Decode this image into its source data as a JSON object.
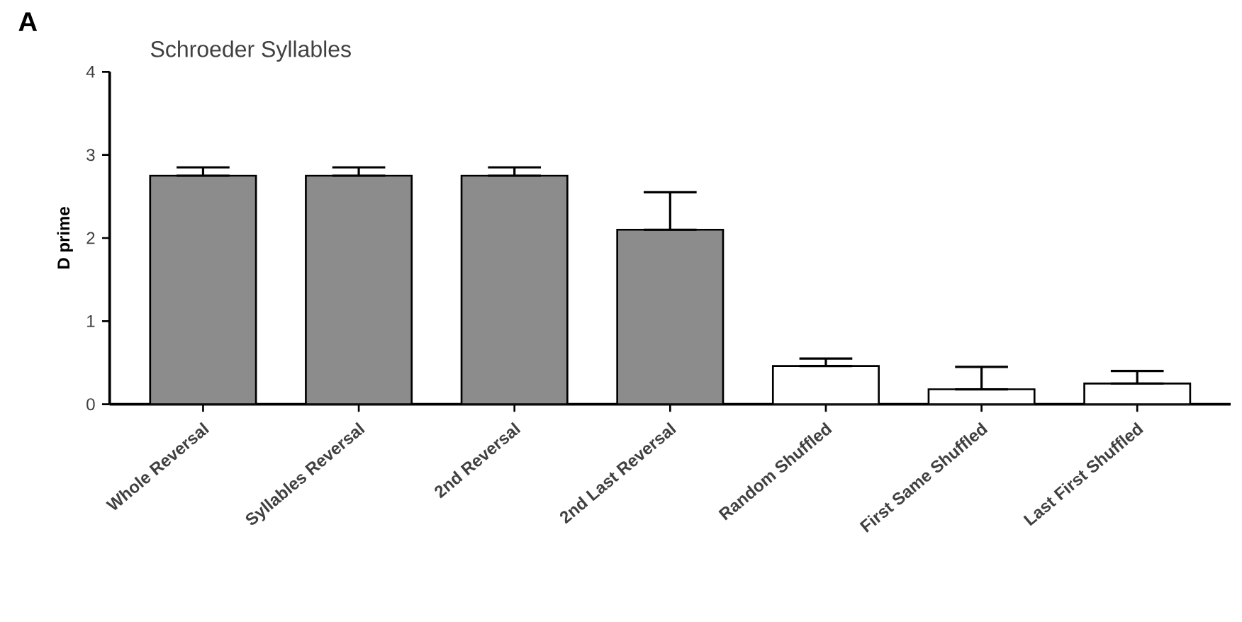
{
  "chart_data": {
    "type": "bar",
    "title": "Schroeder Syllables",
    "ylabel": "D prime",
    "annotations": [
      "A"
    ],
    "categories": [
      "Whole Reversal",
      "Syllables Reversal",
      "2nd Reversal",
      "2nd Last Reversal",
      "Random Shuffled",
      "First Same Shuffled",
      "Last First Shuffled"
    ],
    "values": [
      2.75,
      2.75,
      2.75,
      2.1,
      0.46,
      0.18,
      0.25
    ],
    "errors": [
      [
        2.75,
        2.85
      ],
      [
        2.75,
        2.85
      ],
      [
        2.75,
        2.85
      ],
      [
        2.1,
        2.55
      ],
      [
        0.46,
        0.55
      ],
      [
        0.18,
        0.45
      ],
      [
        0.25,
        0.4
      ]
    ],
    "colors": [
      "#8c8c8c",
      "#8c8c8c",
      "#8c8c8c",
      "#8c8c8c",
      "#ffffff",
      "#ffffff",
      "#ffffff"
    ],
    "ylim": [
      0,
      4
    ],
    "yticks": [
      0,
      1,
      2,
      3,
      4
    ],
    "grid": false
  }
}
